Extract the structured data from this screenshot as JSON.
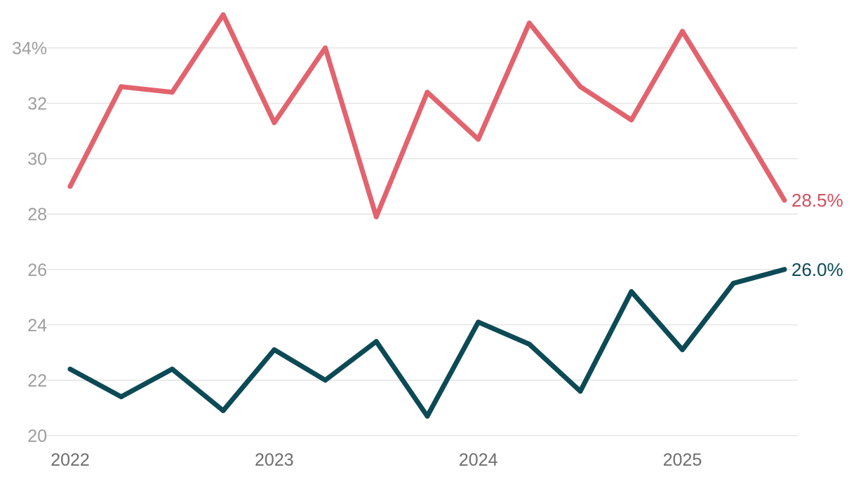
{
  "chart_data": {
    "type": "line",
    "title": "",
    "xlabel": "",
    "ylabel": "",
    "x": [
      2022.0,
      2022.25,
      2022.5,
      2022.75,
      2023.0,
      2023.25,
      2023.5,
      2023.75,
      2024.0,
      2024.25,
      2024.5,
      2024.75,
      2025.0,
      2025.25,
      2025.5
    ],
    "xlim": [
      2022.0,
      2025.5
    ],
    "ylim": [
      20,
      35.2
    ],
    "grid": true,
    "legend": "none",
    "x_ticks": [
      {
        "value": 2022,
        "label": "2022"
      },
      {
        "value": 2023,
        "label": "2023"
      },
      {
        "value": 2024,
        "label": "2024"
      },
      {
        "value": 2025,
        "label": "2025"
      }
    ],
    "y_ticks": [
      {
        "value": 20,
        "label": "20"
      },
      {
        "value": 22,
        "label": "22"
      },
      {
        "value": 24,
        "label": "24"
      },
      {
        "value": 26,
        "label": "26"
      },
      {
        "value": 28,
        "label": "28"
      },
      {
        "value": 30,
        "label": "30"
      },
      {
        "value": 32,
        "label": "32"
      },
      {
        "value": 34,
        "label": "34%"
      }
    ],
    "series": [
      {
        "color": "#e2636e",
        "label_color": "#d44e5d",
        "end_label": "28.5%",
        "values": [
          29.0,
          32.6,
          32.4,
          35.2,
          31.3,
          34.0,
          27.9,
          32.4,
          30.7,
          34.9,
          32.6,
          31.4,
          34.6,
          31.6,
          28.5
        ]
      },
      {
        "color": "#0c4a55",
        "label_color": "#0c4a55",
        "end_label": "26.0%",
        "values": [
          22.4,
          21.4,
          22.4,
          20.9,
          23.1,
          22.0,
          23.4,
          20.7,
          24.1,
          23.3,
          21.6,
          25.2,
          23.1,
          25.5,
          26.0
        ]
      }
    ]
  }
}
